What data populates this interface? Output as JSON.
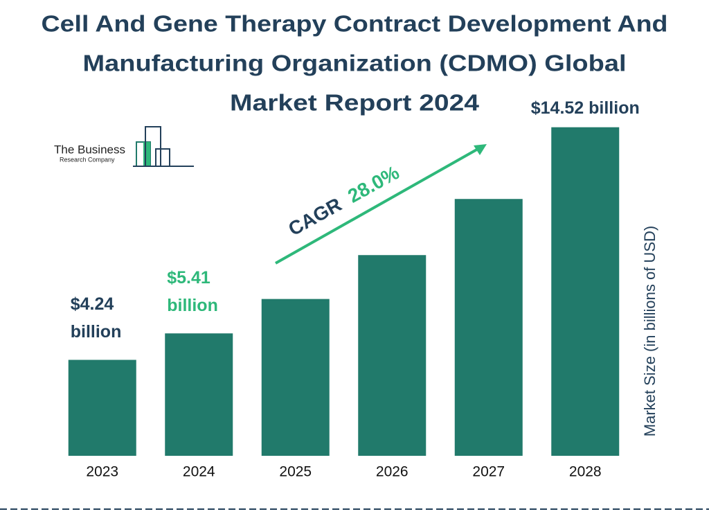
{
  "chart_data": {
    "type": "bar",
    "title": [
      "Cell And Gene Therapy Contract Development And",
      "Manufacturing Organization (CDMO) Global",
      "Market Report 2024"
    ],
    "logo": [
      "The Business",
      "Research Company"
    ],
    "categories": [
      "2023",
      "2024",
      "2025",
      "2026",
      "2027",
      "2028"
    ],
    "values": [
      4.24,
      5.41,
      6.93,
      8.87,
      11.35,
      14.52
    ],
    "value_labels": [
      "$4.24 billion",
      "$5.41 billion",
      null,
      null,
      null,
      "$14.52 billion"
    ],
    "color": "#217a6b",
    "ylabel": "Market Size (in billions of USD)",
    "ylim": [
      0,
      15
    ],
    "annotation": {
      "label": "CAGR",
      "value": "28.0%"
    },
    "grid": false
  }
}
